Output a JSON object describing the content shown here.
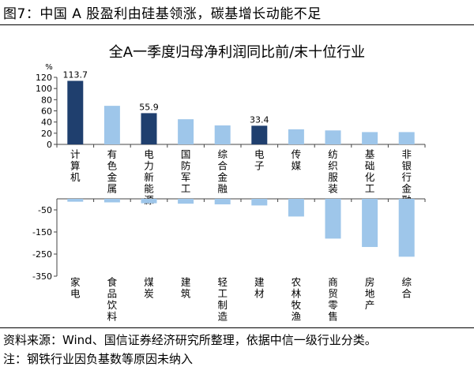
{
  "figure": {
    "title": "图7：中国 A 股盈利由硅基领涨，碳基增长动能不足",
    "source": "资料来源：Wind、国信证券经济研究所整理，依据中信一级行业分类。",
    "note": "注：钢铁行业因负基数等原因未纳入"
  },
  "colors": {
    "highlight_bar": "#1f3f6e",
    "normal_bar": "#9ec6ea",
    "axis": "#444444"
  },
  "chart_data": [
    {
      "type": "bar",
      "title": "全A一季度归母净利润同比前/末十位行业",
      "ylabel": "%",
      "ylim": [
        0,
        120
      ],
      "yticks": [
        0,
        20,
        40,
        60,
        80,
        100,
        120
      ],
      "grid": false,
      "categories": [
        "计算机",
        "有色金属",
        "电力新能源",
        "国防军工",
        "综合金融",
        "电子",
        "传媒",
        "纺织服装",
        "基础化工",
        "非银行金融"
      ],
      "values": [
        113.7,
        69,
        55.9,
        45,
        34,
        33.4,
        27,
        25,
        22,
        22
      ],
      "highlighted": [
        true,
        false,
        true,
        false,
        false,
        true,
        false,
        false,
        false,
        false
      ],
      "data_labels": [
        "113.7",
        "",
        "55.9",
        "",
        "",
        "33.4",
        "",
        "",
        "",
        ""
      ]
    },
    {
      "type": "bar",
      "ylim": [
        -350,
        0
      ],
      "yticks": [
        -50,
        -150,
        -250,
        -350
      ],
      "ytick_labels": [
        "-50",
        "-150",
        "-250",
        "-350"
      ],
      "grid": false,
      "categories": [
        "家电",
        "食品饮料",
        "煤炭",
        "建筑",
        "轻工制造",
        "建材",
        "农林牧渔",
        "商贸零售",
        "房地产",
        "综合"
      ],
      "values": [
        -13,
        -16,
        -20,
        -22,
        -25,
        -30,
        -80,
        -180,
        -218,
        -262
      ],
      "highlighted": [
        false,
        false,
        false,
        false,
        false,
        false,
        false,
        false,
        false,
        false
      ]
    }
  ]
}
